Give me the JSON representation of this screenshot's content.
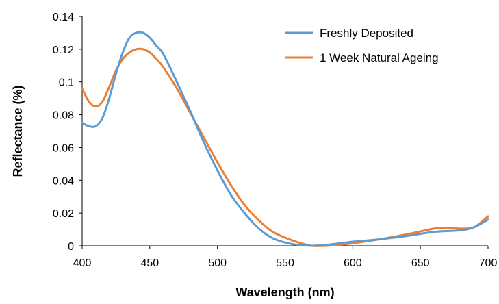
{
  "chart_data": {
    "type": "line",
    "title": "",
    "xlabel": "Wavelength (nm)",
    "ylabel": "Reflectance (%)",
    "xlim": [
      400,
      700
    ],
    "ylim": [
      0,
      0.14
    ],
    "xticks": [
      400,
      450,
      500,
      550,
      600,
      650,
      700
    ],
    "yticks": [
      0,
      0.02,
      0.04,
      0.06,
      0.08,
      0.1,
      0.12,
      0.14
    ],
    "xtick_labels": [
      "400",
      "450",
      "500",
      "550",
      "600",
      "650",
      "700"
    ],
    "ytick_labels": [
      "0",
      "0.02",
      "0.04",
      "0.06",
      "0.08",
      "0.1",
      "0.12",
      "0.14"
    ],
    "grid": false,
    "legend_position": "top-right",
    "series": [
      {
        "name": "Freshly Deposited",
        "color": "#5b9bd5",
        "x": [
          400,
          405,
          410,
          415,
          420,
          425,
          430,
          435,
          440,
          445,
          450,
          455,
          460,
          470,
          480,
          490,
          500,
          510,
          520,
          530,
          540,
          550,
          560,
          570,
          580,
          590,
          600,
          620,
          640,
          660,
          680,
          690,
          700
        ],
        "y": [
          0.075,
          0.073,
          0.073,
          0.078,
          0.09,
          0.105,
          0.118,
          0.127,
          0.13,
          0.13,
          0.127,
          0.122,
          0.117,
          0.1,
          0.082,
          0.063,
          0.046,
          0.031,
          0.02,
          0.011,
          0.005,
          0.002,
          0.0005,
          0.0,
          0.0005,
          0.0015,
          0.0025,
          0.004,
          0.006,
          0.0085,
          0.0095,
          0.0115,
          0.016
        ]
      },
      {
        "name": "1 Week Natural Ageing",
        "color": "#ed7d31",
        "x": [
          400,
          405,
          410,
          415,
          420,
          425,
          430,
          435,
          440,
          445,
          450,
          455,
          460,
          470,
          480,
          490,
          500,
          510,
          520,
          530,
          540,
          550,
          560,
          570,
          580,
          590,
          600,
          620,
          640,
          660,
          670,
          680,
          690,
          700
        ],
        "y": [
          0.096,
          0.088,
          0.085,
          0.088,
          0.097,
          0.107,
          0.114,
          0.118,
          0.12,
          0.12,
          0.118,
          0.114,
          0.109,
          0.096,
          0.081,
          0.066,
          0.051,
          0.037,
          0.025,
          0.016,
          0.009,
          0.005,
          0.002,
          0.0,
          0.0,
          0.0005,
          0.0015,
          0.004,
          0.007,
          0.0105,
          0.011,
          0.0105,
          0.0115,
          0.018
        ]
      }
    ]
  }
}
